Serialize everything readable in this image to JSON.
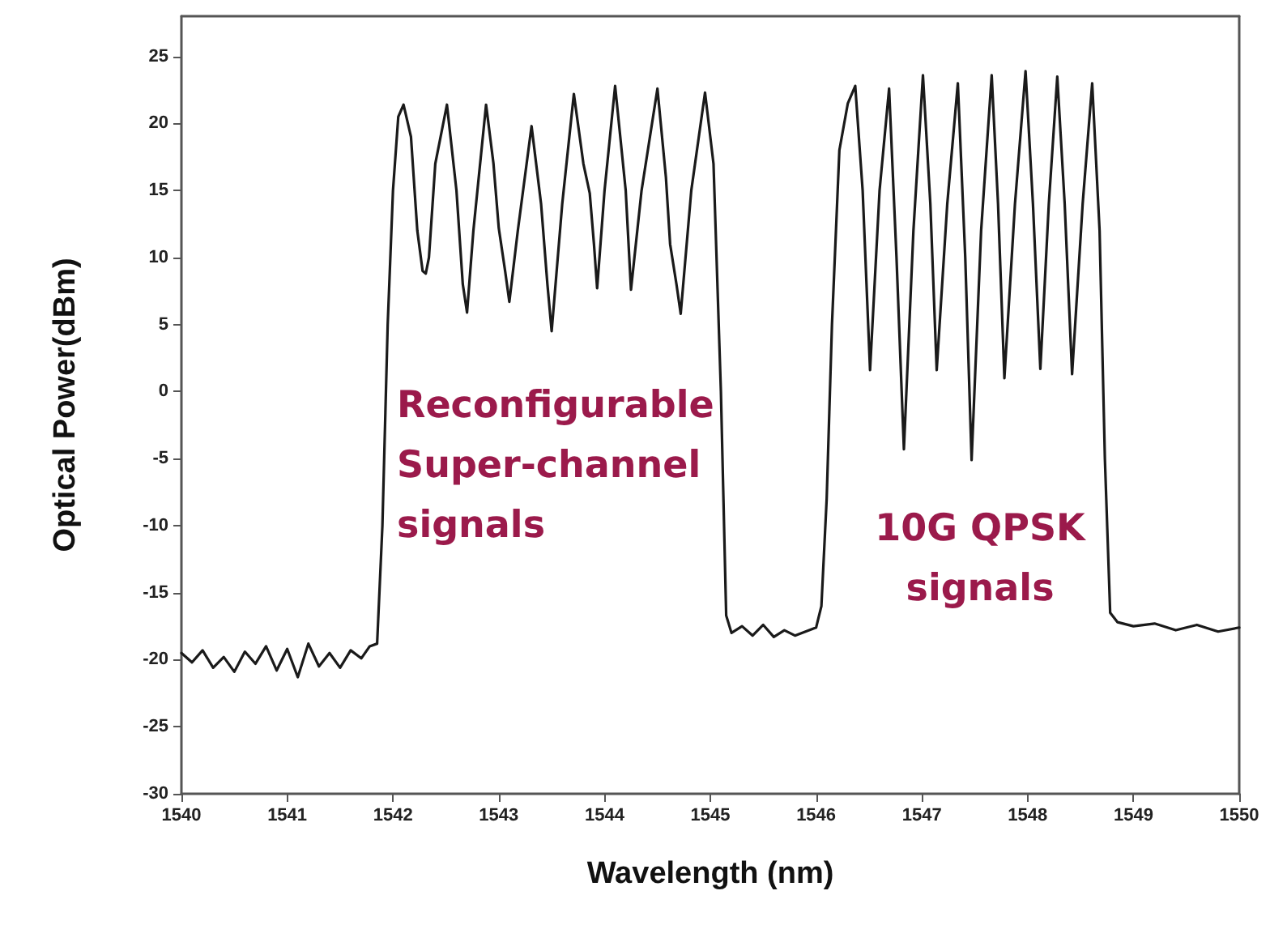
{
  "chart_data": {
    "type": "line",
    "xlabel": "Wavelength (nm)",
    "ylabel": "Optical Power(dBm)",
    "xlim": [
      1540,
      1550
    ],
    "xticks": [
      1540,
      1541,
      1542,
      1543,
      1544,
      1545,
      1546,
      1547,
      1548,
      1549,
      1550
    ],
    "ylim": [
      -30,
      28
    ],
    "yticks": [
      -30,
      -25,
      -20,
      -15,
      -10,
      -5,
      0,
      5,
      10,
      15,
      20,
      25
    ],
    "grid": false,
    "marker": "none",
    "line_style": "solid",
    "annotations": [
      "Reconfigurable\nSuper-channel\nsignals",
      "10G QPSK\nsignals"
    ],
    "series": [
      {
        "color": "#1a1a1a",
        "x": [
          1540,
          1540.1,
          1540.2,
          1540.3,
          1540.4,
          1540.5,
          1540.6,
          1540.7,
          1540.8,
          1540.9,
          1541.0,
          1541.1,
          1541.2,
          1541.3,
          1541.4,
          1541.5,
          1541.6,
          1541.7,
          1541.78,
          1541.85,
          1541.9,
          1541.95,
          1542.0,
          1542.05,
          1542.1,
          1542.17,
          1542.23,
          1542.28,
          1542.31,
          1542.34,
          1542.4,
          1542.51,
          1542.6,
          1542.66,
          1542.7,
          1542.76,
          1542.88,
          1542.95,
          1543.0,
          1543.06,
          1543.1,
          1543.18,
          1543.31,
          1543.4,
          1543.46,
          1543.5,
          1543.6,
          1543.71,
          1543.8,
          1543.86,
          1543.9,
          1543.93,
          1544.0,
          1544.1,
          1544.2,
          1544.25,
          1544.35,
          1544.5,
          1544.58,
          1544.62,
          1544.68,
          1544.72,
          1544.82,
          1544.95,
          1545.03,
          1545.1,
          1545.15,
          1545.2,
          1545.3,
          1545.4,
          1545.5,
          1545.6,
          1545.7,
          1545.8,
          1545.9,
          1546.0,
          1546.05,
          1546.1,
          1546.15,
          1546.22,
          1546.3,
          1546.37,
          1546.44,
          1546.51,
          1546.6,
          1546.69,
          1546.76,
          1546.83,
          1546.92,
          1547.01,
          1547.08,
          1547.14,
          1547.24,
          1547.34,
          1547.41,
          1547.47,
          1547.56,
          1547.66,
          1547.72,
          1547.78,
          1547.88,
          1547.98,
          1548.05,
          1548.12,
          1548.2,
          1548.28,
          1548.35,
          1548.42,
          1548.52,
          1548.61,
          1548.68,
          1548.73,
          1548.78,
          1548.85,
          1549.0,
          1549.2,
          1549.4,
          1549.6,
          1549.8,
          1550.0
        ],
        "values": [
          -19.5,
          -20.2,
          -19.3,
          -20.6,
          -19.8,
          -20.9,
          -19.4,
          -20.3,
          -19.0,
          -20.8,
          -19.2,
          -21.3,
          -18.8,
          -20.5,
          -19.5,
          -20.6,
          -19.3,
          -19.9,
          -19.0,
          -18.8,
          -10,
          5,
          15,
          20.5,
          21.4,
          19,
          12,
          9,
          8.8,
          10,
          17,
          21.4,
          15,
          8,
          5.9,
          12,
          21.4,
          17,
          12.2,
          9,
          6.7,
          12,
          19.8,
          14,
          8,
          4.5,
          14,
          22.2,
          17,
          14.8,
          11,
          7.7,
          15,
          22.8,
          15,
          7.6,
          15,
          22.6,
          16,
          11,
          8,
          5.8,
          15,
          22.3,
          17,
          0,
          -16.7,
          -18,
          -17.5,
          -18.2,
          -17.4,
          -18.3,
          -17.8,
          -18.2,
          -17.9,
          -17.6,
          -16,
          -8,
          5,
          18,
          21.5,
          22.8,
          15,
          1.6,
          15,
          22.6,
          10,
          -4.3,
          12,
          23.6,
          14,
          1.6,
          14,
          23.0,
          10,
          -5.1,
          12,
          23.6,
          14,
          1.0,
          14,
          23.9,
          14,
          1.7,
          14,
          23.5,
          14,
          1.3,
          14,
          23.0,
          12,
          -5,
          -16.5,
          -17.2,
          -17.5,
          -17.3,
          -17.8,
          -17.4,
          -17.9,
          -17.6
        ]
      }
    ]
  }
}
